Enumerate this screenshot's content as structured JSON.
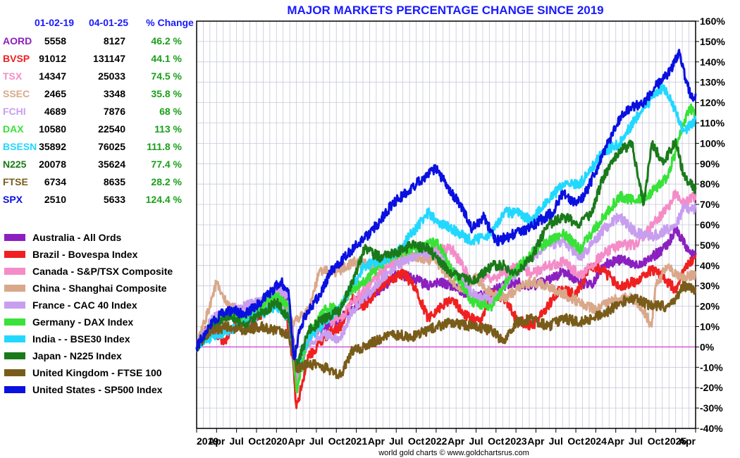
{
  "chart_data": {
    "type": "line",
    "title": "MAJOR MARKETS PERCENTAGE CHANGE SINCE 2019",
    "ylim": [
      -40,
      160
    ],
    "y_ticks": [
      "160%",
      "150%",
      "140%",
      "130%",
      "120%",
      "110%",
      "100%",
      "90%",
      "80%",
      "70%",
      "60%",
      "50%",
      "40%",
      "30%",
      "20%",
      "10%",
      "0%",
      "-10%",
      "-20%",
      "-30%",
      "-40%"
    ],
    "x_ticks": [
      "2019",
      "Apr",
      "Jul",
      "Oct",
      "2020",
      "Apr",
      "Jul",
      "Oct",
      "2021",
      "Apr",
      "Jul",
      "Oct",
      "2022",
      "Apr",
      "Jul",
      "Oct",
      "2023",
      "Apr",
      "Jul",
      "Oct",
      "2024",
      "Apr",
      "Jul",
      "Oct",
      "2025",
      "Apr"
    ],
    "x_range": [
      2019.0,
      2025.25
    ],
    "credit": "world gold charts © www.goldchartsrus.com",
    "table_header": {
      "date_start": "01-02-19",
      "date_end": "04-01-25",
      "change": "% Change"
    },
    "series": [
      {
        "symbol": "AORD",
        "name": "Australia - All Ords",
        "color": "#8b1fc0",
        "start_value": "5558",
        "end_value": "8127",
        "change": "46.2 %",
        "x": [
          2019.0,
          2019.15,
          2019.3,
          2019.5,
          2019.7,
          2019.9,
          2020.05,
          2020.15,
          2020.2,
          2020.25,
          2020.4,
          2020.6,
          2020.8,
          2020.95,
          2021.1,
          2021.3,
          2021.5,
          2021.7,
          2021.9,
          2022.0,
          2022.2,
          2022.45,
          2022.7,
          2022.85,
          2023.0,
          2023.2,
          2023.4,
          2023.6,
          2023.8,
          2023.95,
          2024.1,
          2024.3,
          2024.5,
          2024.7,
          2024.9,
          2025.0,
          2025.1,
          2025.2,
          2025.25
        ],
        "y": [
          0,
          8,
          13,
          18,
          20,
          22,
          28,
          24,
          10,
          -18,
          5,
          10,
          14,
          18,
          24,
          28,
          36,
          34,
          30,
          32,
          30,
          24,
          27,
          30,
          32,
          30,
          33,
          37,
          32,
          30,
          40,
          43,
          40,
          44,
          50,
          58,
          52,
          45,
          46.2
        ]
      },
      {
        "symbol": "BVSP",
        "name": "Brazil - Bovespa Index",
        "color": "#f02020",
        "start_value": "91012",
        "end_value": "131147",
        "change": "44.1 %",
        "x": [
          2019.0,
          2019.1,
          2019.25,
          2019.35,
          2019.5,
          2019.7,
          2019.9,
          2020.0,
          2020.1,
          2020.2,
          2020.25,
          2020.4,
          2020.6,
          2020.8,
          2020.95,
          2021.1,
          2021.3,
          2021.45,
          2021.6,
          2021.75,
          2021.9,
          2022.0,
          2022.2,
          2022.35,
          2022.55,
          2022.7,
          2022.85,
          2023.0,
          2023.2,
          2023.4,
          2023.55,
          2023.75,
          2023.95,
          2024.1,
          2024.3,
          2024.5,
          2024.7,
          2024.85,
          2025.0,
          2025.1,
          2025.25
        ],
        "y": [
          0,
          8,
          6,
          2,
          14,
          12,
          20,
          27,
          22,
          -5,
          -30,
          -5,
          5,
          10,
          24,
          20,
          30,
          34,
          36,
          28,
          14,
          18,
          24,
          16,
          12,
          26,
          24,
          14,
          10,
          20,
          28,
          26,
          40,
          37,
          30,
          32,
          38,
          34,
          28,
          38,
          44.1
        ]
      },
      {
        "symbol": "TSX",
        "name": "Canada - S&P/TSX Composite",
        "color": "#f48cc8",
        "start_value": "14347",
        "end_value": "25033",
        "change": "74.5 %",
        "x": [
          2019.0,
          2019.2,
          2019.4,
          2019.6,
          2019.8,
          2020.0,
          2020.15,
          2020.25,
          2020.4,
          2020.6,
          2020.8,
          2020.95,
          2021.1,
          2021.3,
          2021.5,
          2021.7,
          2021.9,
          2022.0,
          2022.2,
          2022.45,
          2022.7,
          2022.85,
          2023.0,
          2023.2,
          2023.4,
          2023.6,
          2023.8,
          2023.95,
          2024.1,
          2024.3,
          2024.5,
          2024.7,
          2024.9,
          2025.0,
          2025.1,
          2025.25
        ],
        "y": [
          0,
          12,
          16,
          16,
          18,
          22,
          20,
          -18,
          5,
          12,
          14,
          22,
          28,
          36,
          42,
          44,
          44,
          48,
          48,
          32,
          34,
          36,
          40,
          36,
          40,
          42,
          35,
          40,
          46,
          50,
          50,
          60,
          68,
          76,
          70,
          74.5
        ]
      },
      {
        "symbol": "SSEC",
        "name": "China - Shanghai Composite",
        "color": "#d9a88a",
        "start_value": "2465",
        "end_value": "3348",
        "change": "35.8 %",
        "x": [
          2019.0,
          2019.1,
          2019.25,
          2019.3,
          2019.4,
          2019.55,
          2019.7,
          2019.9,
          2020.0,
          2020.1,
          2020.2,
          2020.4,
          2020.55,
          2020.7,
          2020.9,
          2021.0,
          2021.2,
          2021.4,
          2021.6,
          2021.8,
          2022.0,
          2022.2,
          2022.35,
          2022.5,
          2022.7,
          2022.85,
          2023.0,
          2023.2,
          2023.4,
          2023.6,
          2023.8,
          2024.0,
          2024.1,
          2024.3,
          2024.45,
          2024.6,
          2024.7,
          2024.75,
          2024.9,
          2025.0,
          2025.1,
          2025.25
        ],
        "y": [
          0,
          12,
          32,
          26,
          20,
          18,
          20,
          22,
          26,
          22,
          12,
          18,
          38,
          36,
          40,
          42,
          40,
          44,
          46,
          44,
          42,
          32,
          28,
          34,
          26,
          24,
          28,
          32,
          30,
          26,
          22,
          18,
          22,
          24,
          24,
          18,
          10,
          30,
          40,
          36,
          34,
          35.8
        ]
      },
      {
        "symbol": "FCHI",
        "name": "France - CAC 40 Index",
        "color": "#c89ef0",
        "start_value": "4689",
        "end_value": "7876",
        "change": "68 %",
        "x": [
          2019.0,
          2019.2,
          2019.4,
          2019.6,
          2019.8,
          2020.0,
          2020.15,
          2020.25,
          2020.4,
          2020.6,
          2020.8,
          2020.95,
          2021.1,
          2021.3,
          2021.5,
          2021.7,
          2021.9,
          2022.0,
          2022.2,
          2022.45,
          2022.7,
          2022.85,
          2023.0,
          2023.2,
          2023.4,
          2023.6,
          2023.8,
          2023.95,
          2024.1,
          2024.3,
          2024.5,
          2024.7,
          2024.9,
          2025.0,
          2025.1,
          2025.25
        ],
        "y": [
          0,
          14,
          18,
          20,
          22,
          28,
          26,
          -15,
          2,
          6,
          4,
          18,
          24,
          32,
          40,
          44,
          46,
          46,
          38,
          26,
          22,
          30,
          36,
          44,
          50,
          52,
          44,
          50,
          58,
          64,
          56,
          54,
          58,
          60,
          68,
          68
        ]
      },
      {
        "symbol": "DAX",
        "name": "Germany - DAX Index",
        "color": "#38e238",
        "start_value": "10580",
        "end_value": "22540",
        "change": "113 %",
        "x": [
          2019.0,
          2019.2,
          2019.4,
          2019.6,
          2019.8,
          2020.0,
          2020.15,
          2020.25,
          2020.4,
          2020.6,
          2020.8,
          2020.95,
          2021.1,
          2021.3,
          2021.5,
          2021.7,
          2021.9,
          2022.0,
          2022.2,
          2022.45,
          2022.7,
          2022.85,
          2023.0,
          2023.2,
          2023.4,
          2023.6,
          2023.8,
          2023.95,
          2024.1,
          2024.3,
          2024.5,
          2024.7,
          2024.9,
          2025.0,
          2025.1,
          2025.18,
          2025.25
        ],
        "y": [
          0,
          12,
          16,
          14,
          20,
          26,
          20,
          -22,
          5,
          18,
          20,
          28,
          32,
          40,
          46,
          48,
          50,
          52,
          38,
          22,
          20,
          30,
          38,
          46,
          52,
          56,
          48,
          56,
          64,
          74,
          72,
          76,
          84,
          96,
          110,
          118,
          113
        ]
      },
      {
        "symbol": "BSESN",
        "name": "India -  - BSE30 Index",
        "color": "#22d8ff",
        "start_value": "35892",
        "end_value": "76025",
        "change": "111.8 %",
        "x": [
          2019.0,
          2019.2,
          2019.4,
          2019.6,
          2019.8,
          2020.0,
          2020.15,
          2020.25,
          2020.4,
          2020.6,
          2020.8,
          2020.95,
          2021.1,
          2021.3,
          2021.5,
          2021.7,
          2021.9,
          2022.0,
          2022.2,
          2022.45,
          2022.7,
          2022.85,
          2023.0,
          2023.2,
          2023.4,
          2023.6,
          2023.8,
          2023.95,
          2024.1,
          2024.3,
          2024.5,
          2024.7,
          2024.85,
          2025.0,
          2025.1,
          2025.25
        ],
        "y": [
          0,
          5,
          8,
          12,
          16,
          20,
          14,
          -10,
          4,
          12,
          20,
          30,
          40,
          42,
          46,
          56,
          66,
          62,
          58,
          52,
          56,
          66,
          66,
          62,
          72,
          80,
          80,
          88,
          96,
          100,
          112,
          122,
          128,
          116,
          106,
          111.8
        ]
      },
      {
        "symbol": "N225",
        "name": "Japan - N225 Index",
        "color": "#1a7a1a",
        "start_value": "20078",
        "end_value": "35624",
        "change": "77.4 %",
        "x": [
          2019.0,
          2019.2,
          2019.4,
          2019.6,
          2019.8,
          2020.0,
          2020.15,
          2020.25,
          2020.4,
          2020.6,
          2020.8,
          2020.95,
          2021.1,
          2021.3,
          2021.5,
          2021.7,
          2021.9,
          2022.0,
          2022.2,
          2022.45,
          2022.7,
          2022.85,
          2023.0,
          2023.2,
          2023.4,
          2023.6,
          2023.8,
          2023.95,
          2024.1,
          2024.3,
          2024.45,
          2024.6,
          2024.7,
          2024.85,
          2025.0,
          2025.1,
          2025.25
        ],
        "y": [
          0,
          10,
          16,
          10,
          16,
          22,
          14,
          -10,
          8,
          14,
          18,
          32,
          48,
          44,
          46,
          50,
          48,
          44,
          36,
          32,
          40,
          40,
          36,
          44,
          60,
          64,
          60,
          66,
          84,
          96,
          100,
          70,
          100,
          90,
          102,
          84,
          77.4
        ]
      },
      {
        "symbol": "FTSE",
        "name": "United Kingdom - FTSE 100",
        "color": "#7a5c1a",
        "start_value": "6734",
        "end_value": "8635",
        "change": "28.2 %",
        "x": [
          2019.0,
          2019.2,
          2019.4,
          2019.6,
          2019.8,
          2020.0,
          2020.15,
          2020.25,
          2020.4,
          2020.6,
          2020.8,
          2020.95,
          2021.1,
          2021.3,
          2021.5,
          2021.7,
          2021.9,
          2022.0,
          2022.2,
          2022.45,
          2022.7,
          2022.85,
          2023.0,
          2023.2,
          2023.4,
          2023.6,
          2023.8,
          2023.95,
          2024.1,
          2024.3,
          2024.5,
          2024.7,
          2024.9,
          2025.0,
          2025.1,
          2025.25
        ],
        "y": [
          0,
          8,
          10,
          8,
          10,
          8,
          6,
          -12,
          -8,
          -10,
          -14,
          -2,
          0,
          4,
          6,
          5,
          8,
          10,
          12,
          10,
          8,
          2,
          12,
          14,
          10,
          14,
          12,
          14,
          16,
          22,
          24,
          20,
          20,
          24,
          30,
          28.2
        ]
      },
      {
        "symbol": "SPX",
        "name": "United States - SP500 Index",
        "color": "#0a10e0",
        "start_value": "2510",
        "end_value": "5633",
        "change": "124.4 %",
        "x": [
          2019.0,
          2019.15,
          2019.3,
          2019.45,
          2019.6,
          2019.75,
          2019.9,
          2020.05,
          2020.15,
          2020.22,
          2020.3,
          2020.4,
          2020.55,
          2020.7,
          2020.85,
          2021.0,
          2021.15,
          2021.3,
          2021.45,
          2021.6,
          2021.75,
          2021.9,
          2022.0,
          2022.15,
          2022.3,
          2022.45,
          2022.6,
          2022.75,
          2022.9,
          2023.0,
          2023.15,
          2023.3,
          2023.45,
          2023.6,
          2023.75,
          2023.85,
          2024.0,
          2024.15,
          2024.3,
          2024.45,
          2024.6,
          2024.75,
          2024.9,
          2025.05,
          2025.12,
          2025.2,
          2025.25
        ],
        "y": [
          0,
          10,
          16,
          18,
          16,
          20,
          26,
          32,
          28,
          -6,
          10,
          18,
          26,
          38,
          44,
          50,
          55,
          62,
          70,
          75,
          80,
          85,
          88,
          78,
          70,
          58,
          64,
          52,
          54,
          56,
          58,
          62,
          66,
          76,
          70,
          74,
          86,
          100,
          112,
          118,
          120,
          128,
          134,
          144,
          132,
          122,
          124.4
        ]
      }
    ]
  }
}
